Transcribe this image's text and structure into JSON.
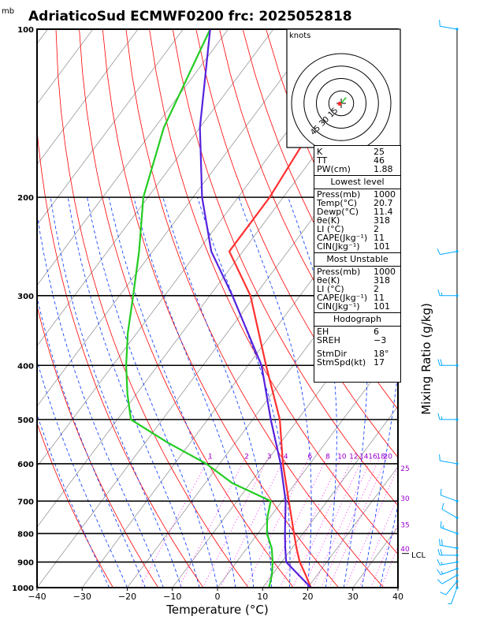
{
  "title": "AdriaticoSud ECMWF0200  frc: 2025052818",
  "units_label": "mb",
  "xlabel": "Temperature (°C)",
  "right_label": "Mixing Ratio (g/kg)",
  "lcl_label": "LCL",
  "hodograph": {
    "units": "knots",
    "ring_labels": [
      "15",
      "30",
      "45"
    ],
    "ring_speeds": [
      15,
      30,
      45
    ]
  },
  "indices": {
    "block1": [
      {
        "k": "K",
        "v": "25"
      },
      {
        "k": "TT",
        "v": "46"
      },
      {
        "k": "PW(cm)",
        "v": "1.88"
      }
    ],
    "lowest_title": "Lowest level",
    "lowest": [
      {
        "k": "Press(mb)",
        "v": "1000"
      },
      {
        "k": "Temp(°C)",
        "v": "20.7"
      },
      {
        "k": "Dewp(°C)",
        "v": "11.4"
      },
      {
        "k": "θe(K)",
        "v": "318"
      },
      {
        "k": "LI (°C)",
        "v": "2"
      },
      {
        "k": "CAPE(Jkg⁻¹)",
        "v": "11"
      },
      {
        "k": "CIN(Jkg⁻¹)",
        "v": "101"
      }
    ],
    "mu_title": "Most Unstable",
    "mu": [
      {
        "k": "Press(mb)",
        "v": "1000"
      },
      {
        "k": "θe(K)",
        "v": "318"
      },
      {
        "k": "LI (°C)",
        "v": "2"
      },
      {
        "k": "CAPE(Jkg⁻¹)",
        "v": "11"
      },
      {
        "k": "CIN(Jkg⁻¹)",
        "v": "101"
      }
    ],
    "hodo_title": "Hodograph",
    "hodo": [
      {
        "k": "EH",
        "v": "6"
      },
      {
        "k": "SREH",
        "v": "−3"
      }
    ],
    "storm": [
      {
        "k": "StmDir",
        "v": "18°"
      },
      {
        "k": "StmSpd(kt)",
        "v": "17"
      }
    ]
  },
  "colors": {
    "temperature": "#ff3030",
    "dewpoint": "#22cc22",
    "parcel": "#5522dd",
    "dry_adiabat": "#ff0000",
    "moist_adiabat": "#0033ff",
    "isotherm": "#999999",
    "mixing_ratio": "#ff00ff",
    "mixing_label": "#9900cc",
    "wind_barb": "#00aaff"
  },
  "chart_data": {
    "type": "line",
    "title": "AdriaticoSud ECMWF0200  frc: 2025052818",
    "xlabel": "Temperature (°C)",
    "ylabel": "mb",
    "xlim": [
      -40,
      40
    ],
    "ylim": [
      1000,
      100
    ],
    "x_ticks": [
      -40,
      -30,
      -20,
      -10,
      0,
      10,
      20,
      30,
      40
    ],
    "p_ticks": [
      100,
      200,
      300,
      400,
      500,
      600,
      700,
      800,
      900,
      1000
    ],
    "mixing_ratio_labels": [
      "1",
      "2",
      "3",
      "4",
      "6",
      "8",
      "10",
      "12",
      "14",
      "16",
      "18",
      "20",
      "25",
      "30",
      "35",
      "40"
    ],
    "mixing_ratio_values": [
      1,
      2,
      3,
      4,
      6,
      8,
      10,
      12,
      14,
      16,
      18,
      20,
      25,
      30,
      35,
      40
    ],
    "series": [
      {
        "key": "temperature",
        "points": [
          [
            1000,
            20.7
          ],
          [
            950,
            17.5
          ],
          [
            900,
            14.0
          ],
          [
            850,
            11.0
          ],
          [
            800,
            8.0
          ],
          [
            700,
            1.5
          ],
          [
            600,
            -6.0
          ],
          [
            500,
            -14.0
          ],
          [
            400,
            -26.0
          ],
          [
            300,
            -41.0
          ],
          [
            250,
            -53.0
          ],
          [
            200,
            -53.0
          ],
          [
            150,
            -55.0
          ],
          [
            100,
            -57.0
          ]
        ]
      },
      {
        "key": "dewpoint",
        "points": [
          [
            1000,
            11.4
          ],
          [
            950,
            10.0
          ],
          [
            900,
            8.0
          ],
          [
            850,
            5.5
          ],
          [
            800,
            2.0
          ],
          [
            750,
            -0.5
          ],
          [
            700,
            -2.5
          ],
          [
            650,
            -14.0
          ],
          [
            600,
            -23.0
          ],
          [
            550,
            -35.0
          ],
          [
            500,
            -47.0
          ],
          [
            450,
            -52.0
          ],
          [
            400,
            -57.0
          ],
          [
            350,
            -62.0
          ],
          [
            300,
            -67.0
          ],
          [
            250,
            -73.0
          ],
          [
            200,
            -81.0
          ],
          [
            150,
            -88.0
          ],
          [
            100,
            -94.0
          ]
        ]
      },
      {
        "key": "parcel",
        "points": [
          [
            1000,
            20.7
          ],
          [
            900,
            11.0
          ],
          [
            850,
            8.5
          ],
          [
            800,
            6.0
          ],
          [
            700,
            0.8
          ],
          [
            600,
            -6.5
          ],
          [
            500,
            -16.0
          ],
          [
            400,
            -27.0
          ],
          [
            300,
            -45.0
          ],
          [
            250,
            -57.0
          ],
          [
            200,
            -68.0
          ],
          [
            150,
            -80.0
          ],
          [
            100,
            -94.0
          ]
        ]
      }
    ],
    "lcl_pressure": 880,
    "wind_barbs": [
      {
        "p": 1000,
        "dir": 200,
        "spd": 5
      },
      {
        "p": 975,
        "dir": 220,
        "spd": 10
      },
      {
        "p": 950,
        "dir": 240,
        "spd": 10
      },
      {
        "p": 925,
        "dir": 250,
        "spd": 15
      },
      {
        "p": 900,
        "dir": 260,
        "spd": 15
      },
      {
        "p": 875,
        "dir": 270,
        "spd": 20
      },
      {
        "p": 850,
        "dir": 280,
        "spd": 20
      },
      {
        "p": 800,
        "dir": 290,
        "spd": 15
      },
      {
        "p": 750,
        "dir": 300,
        "spd": 10
      },
      {
        "p": 700,
        "dir": 290,
        "spd": 10
      },
      {
        "p": 600,
        "dir": 280,
        "spd": 10
      },
      {
        "p": 500,
        "dir": 270,
        "spd": 15
      },
      {
        "p": 400,
        "dir": 270,
        "spd": 20
      },
      {
        "p": 300,
        "dir": 270,
        "spd": 15
      },
      {
        "p": 250,
        "dir": 260,
        "spd": 10
      },
      {
        "p": 100,
        "dir": 280,
        "spd": 10
      }
    ],
    "hodograph_trace": [
      [
        0,
        0
      ],
      [
        2.5,
        3
      ],
      [
        4,
        5
      ],
      [
        6,
        7
      ],
      [
        5,
        6
      ]
    ],
    "storm_motion": [
      -2.0,
      -0.5
    ],
    "grid": true
  }
}
